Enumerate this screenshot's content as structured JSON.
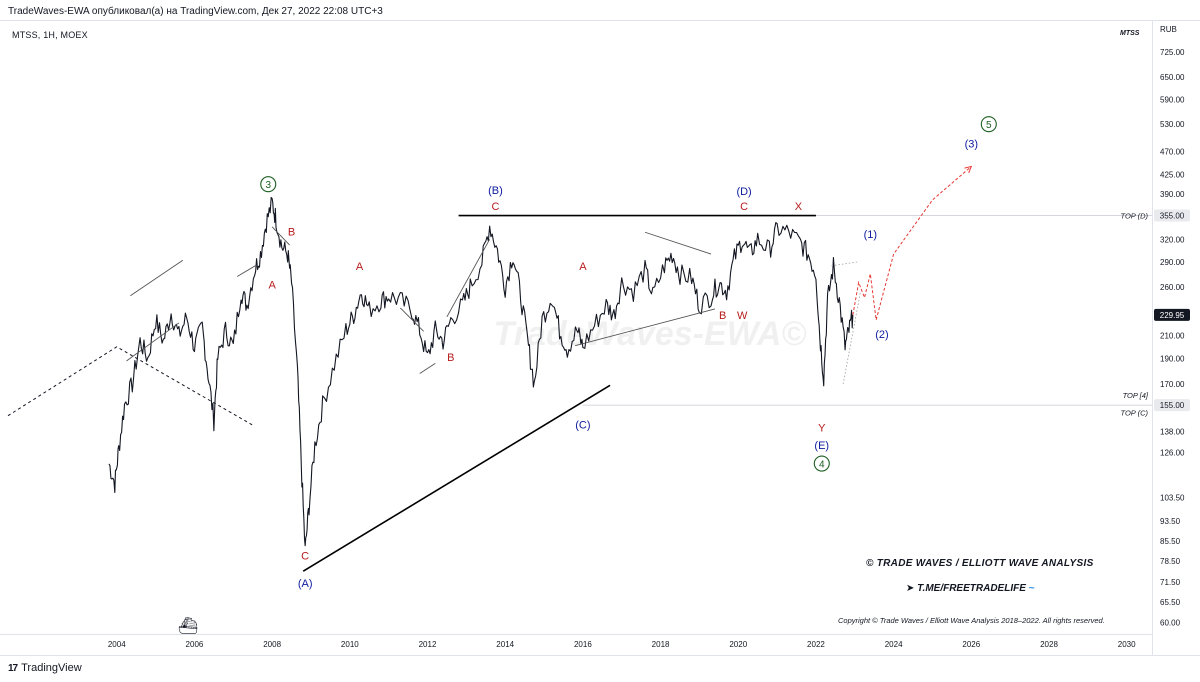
{
  "header": {
    "publish_line": "TradeWaves-EWA опубликовал(а) на TradingView.com, Дек 27, 2022 22:08 UTC+3",
    "symbol_line": "MTSS, 1H, MOEX",
    "symbol_right": "MTSS"
  },
  "footer": {
    "logo": "17",
    "brand_name": "TradingView"
  },
  "branding": {
    "title": "© TRADE WAVES / ELLIOTT WAVE ANALYSIS",
    "telegram": "T.ME/FREETRADELIFE",
    "copyright": "Copyright © Trade Waves / Elliott Wave Analysis 2018–2022. All rights reserved.",
    "watermark": "TradeWaves-EWA©"
  },
  "chart_data": {
    "type": "line",
    "currency": "RUB",
    "x_range": [
      2001.2,
      2030.6
    ],
    "y_scale": "log",
    "y_range": [
      57,
      820
    ],
    "x_tick_labels": [
      "2004",
      "2006",
      "2008",
      "2010",
      "2012",
      "2014",
      "2016",
      "2018",
      "2020",
      "2022",
      "2024",
      "2026",
      "2028",
      "2030"
    ],
    "y_tick_labels": [
      "725.00",
      "650.00",
      "590.00",
      "530.00",
      "470.00",
      "425.00",
      "390.00",
      "320.00",
      "290.00",
      "260.00",
      "210.00",
      "190.00",
      "170.00",
      "138.00",
      "126.00",
      "103.50",
      "93.50",
      "85.50",
      "78.50",
      "71.50",
      "65.50",
      "60.00"
    ],
    "price_tags": [
      {
        "label": "355.00",
        "value": 355,
        "style": "light"
      },
      {
        "label": "229.95",
        "value": 229.95,
        "style": "dark"
      },
      {
        "label": "155.00",
        "value": 155,
        "style": "light"
      }
    ],
    "level_labels": [
      {
        "text": "TOP (D)",
        "value": 355
      },
      {
        "text": "TOP [4]",
        "value": 162
      },
      {
        "text": "TOP (C)",
        "value": 150
      }
    ],
    "price_series": [
      [
        2003.8,
        120
      ],
      [
        2003.95,
        110
      ],
      [
        2004.05,
        128
      ],
      [
        2004.2,
        155
      ],
      [
        2004.4,
        170
      ],
      [
        2004.6,
        205
      ],
      [
        2004.8,
        190
      ],
      [
        2005.0,
        225
      ],
      [
        2005.2,
        205
      ],
      [
        2005.4,
        232
      ],
      [
        2005.6,
        210
      ],
      [
        2005.8,
        228
      ],
      [
        2006.0,
        200
      ],
      [
        2006.2,
        218
      ],
      [
        2006.35,
        178
      ],
      [
        2006.5,
        145
      ],
      [
        2006.6,
        190
      ],
      [
        2006.8,
        215
      ],
      [
        2007.0,
        200
      ],
      [
        2007.2,
        255
      ],
      [
        2007.35,
        240
      ],
      [
        2007.55,
        280
      ],
      [
        2007.7,
        300
      ],
      [
        2007.85,
        345
      ],
      [
        2008.0,
        375
      ],
      [
        2008.1,
        350
      ],
      [
        2008.25,
        310
      ],
      [
        2008.4,
        300
      ],
      [
        2008.5,
        265
      ],
      [
        2008.65,
        180
      ],
      [
        2008.75,
        120
      ],
      [
        2008.85,
        82
      ],
      [
        2008.95,
        100
      ],
      [
        2009.1,
        130
      ],
      [
        2009.3,
        155
      ],
      [
        2009.6,
        185
      ],
      [
        2009.9,
        215
      ],
      [
        2010.1,
        230
      ],
      [
        2010.3,
        255
      ],
      [
        2010.5,
        235
      ],
      [
        2010.8,
        245
      ],
      [
        2011.0,
        250
      ],
      [
        2011.3,
        245
      ],
      [
        2011.6,
        235
      ],
      [
        2011.8,
        215
      ],
      [
        2012.0,
        190
      ],
      [
        2012.2,
        215
      ],
      [
        2012.4,
        205
      ],
      [
        2012.6,
        225
      ],
      [
        2012.9,
        240
      ],
      [
        2013.1,
        260
      ],
      [
        2013.4,
        290
      ],
      [
        2013.6,
        340
      ],
      [
        2013.8,
        305
      ],
      [
        2014.0,
        260
      ],
      [
        2014.2,
        300
      ],
      [
        2014.4,
        250
      ],
      [
        2014.6,
        200
      ],
      [
        2014.75,
        170
      ],
      [
        2014.95,
        225
      ],
      [
        2015.2,
        250
      ],
      [
        2015.4,
        215
      ],
      [
        2015.6,
        198
      ],
      [
        2015.85,
        215
      ],
      [
        2016.0,
        200
      ],
      [
        2016.3,
        220
      ],
      [
        2016.6,
        240
      ],
      [
        2016.8,
        230
      ],
      [
        2017.0,
        265
      ],
      [
        2017.3,
        255
      ],
      [
        2017.6,
        280
      ],
      [
        2017.8,
        250
      ],
      [
        2018.1,
        285
      ],
      [
        2018.3,
        300
      ],
      [
        2018.5,
        275
      ],
      [
        2018.8,
        270
      ],
      [
        2019.0,
        240
      ],
      [
        2019.3,
        250
      ],
      [
        2019.5,
        265
      ],
      [
        2019.7,
        255
      ],
      [
        2019.9,
        295
      ],
      [
        2020.1,
        320
      ],
      [
        2020.3,
        300
      ],
      [
        2020.5,
        320
      ],
      [
        2020.8,
        305
      ],
      [
        2021.0,
        335
      ],
      [
        2021.3,
        330
      ],
      [
        2021.6,
        315
      ],
      [
        2021.8,
        300
      ],
      [
        2022.0,
        275
      ],
      [
        2022.1,
        210
      ],
      [
        2022.2,
        175
      ],
      [
        2022.3,
        245
      ],
      [
        2022.45,
        285
      ],
      [
        2022.6,
        245
      ],
      [
        2022.75,
        200
      ],
      [
        2022.85,
        215
      ],
      [
        2022.95,
        229.95
      ]
    ],
    "trendlines": [
      {
        "name": "lower-triangle-line",
        "x1": 2008.8,
        "y1": 75,
        "x2": 2016.7,
        "y2": 169,
        "style": "solid"
      },
      {
        "name": "upper-triangle-line",
        "x1": 2012.8,
        "y1": 355,
        "x2": 2022.0,
        "y2": 355,
        "style": "solid"
      }
    ],
    "channels": [
      {
        "x1": 2004.25,
        "y1": 188,
        "x2": 2005.6,
        "y2": 222
      },
      {
        "x1": 2004.35,
        "y1": 250,
        "x2": 2005.7,
        "y2": 292
      },
      {
        "x1": 2007.1,
        "y1": 272,
        "x2": 2007.6,
        "y2": 286
      },
      {
        "x1": 2008.0,
        "y1": 338,
        "x2": 2008.45,
        "y2": 312
      },
      {
        "x1": 2011.3,
        "y1": 237,
        "x2": 2011.9,
        "y2": 214
      },
      {
        "x1": 2011.8,
        "y1": 178,
        "x2": 2012.2,
        "y2": 186
      },
      {
        "x1": 2012.5,
        "y1": 228,
        "x2": 2013.6,
        "y2": 320
      },
      {
        "x1": 2015.8,
        "y1": 201,
        "x2": 2019.4,
        "y2": 236
      },
      {
        "x1": 2017.6,
        "y1": 330,
        "x2": 2019.3,
        "y2": 300
      }
    ],
    "projection_dashed_past": [
      [
        2001.2,
        148
      ],
      [
        2004.0,
        200
      ],
      [
        2007.5,
        142
      ]
    ],
    "projection_red": [
      [
        2022.95,
        229.95
      ],
      [
        2023.1,
        265
      ],
      [
        2023.25,
        248
      ],
      [
        2023.4,
        275
      ],
      [
        2023.55,
        225
      ],
      [
        2024.0,
        300
      ],
      [
        2025.0,
        380
      ],
      [
        2026.0,
        440
      ]
    ],
    "wave_labels": [
      {
        "text": "3",
        "x": 2007.9,
        "y": 400,
        "color": "#1b5e20",
        "circled": true
      },
      {
        "text": "B",
        "x": 2008.5,
        "y": 325,
        "color": "#b71c1c"
      },
      {
        "text": "A",
        "x": 2008.0,
        "y": 258,
        "color": "#b71c1c"
      },
      {
        "text": "C",
        "x": 2008.85,
        "y": 79,
        "color": "#b71c1c"
      },
      {
        "text": "(A)",
        "x": 2008.85,
        "y": 70,
        "color": "#0d1b9e"
      },
      {
        "text": "A",
        "x": 2010.25,
        "y": 280,
        "color": "#b71c1c"
      },
      {
        "text": "B",
        "x": 2012.6,
        "y": 188,
        "color": "#b71c1c"
      },
      {
        "text": "(B)",
        "x": 2013.75,
        "y": 390,
        "color": "#0d1b9e"
      },
      {
        "text": "C",
        "x": 2013.75,
        "y": 364,
        "color": "#b71c1c"
      },
      {
        "text": "A",
        "x": 2016.0,
        "y": 280,
        "color": "#b71c1c"
      },
      {
        "text": "(C)",
        "x": 2016.0,
        "y": 140,
        "color": "#0d1b9e"
      },
      {
        "text": "B",
        "x": 2019.6,
        "y": 226,
        "color": "#b71c1c"
      },
      {
        "text": "W",
        "x": 2020.1,
        "y": 226,
        "color": "#b71c1c"
      },
      {
        "text": "(D)",
        "x": 2020.15,
        "y": 388,
        "color": "#0d1b9e"
      },
      {
        "text": "C",
        "x": 2020.15,
        "y": 364,
        "color": "#b71c1c"
      },
      {
        "text": "X",
        "x": 2021.55,
        "y": 364,
        "color": "#b71c1c"
      },
      {
        "text": "Y",
        "x": 2022.15,
        "y": 138,
        "color": "#b71c1c"
      },
      {
        "text": "(E)",
        "x": 2022.15,
        "y": 128,
        "color": "#0d1b9e"
      },
      {
        "text": "4",
        "x": 2022.15,
        "y": 118,
        "color": "#1b5e20",
        "circled": true
      },
      {
        "text": "(1)",
        "x": 2023.4,
        "y": 322,
        "color": "#0d1b9e"
      },
      {
        "text": "(2)",
        "x": 2023.7,
        "y": 208,
        "color": "#0d1b9e"
      },
      {
        "text": "(3)",
        "x": 2026.0,
        "y": 478,
        "color": "#0d1b9e"
      },
      {
        "text": "5",
        "x": 2026.45,
        "y": 520,
        "color": "#1b5e20",
        "circled": true
      }
    ]
  }
}
